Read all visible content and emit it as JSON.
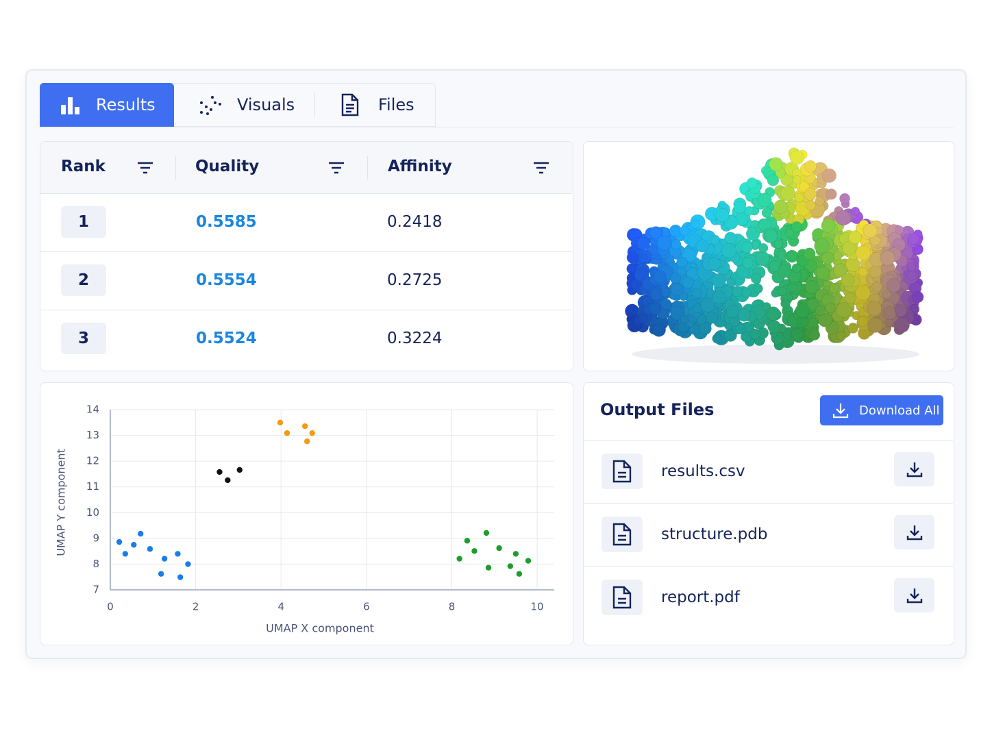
{
  "tabs": [
    {
      "label": "Results"
    },
    {
      "label": "Visuals"
    },
    {
      "label": "Files"
    }
  ],
  "table": {
    "headers": [
      "Rank",
      "Quality",
      "Affinity"
    ],
    "rows": [
      [
        1,
        0.5585,
        0.2418
      ],
      [
        2,
        0.5554,
        0.2725
      ],
      [
        3,
        0.5524,
        0.3224
      ]
    ]
  },
  "chart_data": {
    "type": "scatter",
    "x_label": "UMAP X component",
    "y_label": "UMAP Y component",
    "xlim": [
      0,
      10.4
    ],
    "ylim": [
      7,
      14
    ],
    "xticks": [
      0,
      2,
      4,
      6,
      8,
      10
    ],
    "yticks": [
      7,
      8,
      9,
      10,
      11,
      12,
      13,
      14
    ],
    "grid": true,
    "series": [
      {
        "color": "#1a7de8",
        "x": [
          0.21,
          0.35,
          0.55,
          0.71,
          0.93,
          1.19,
          1.27,
          1.58,
          1.64,
          1.82
        ],
        "y": [
          8.86,
          8.4,
          8.75,
          9.18,
          8.59,
          7.62,
          8.21,
          8.4,
          7.49,
          8.0
        ]
      },
      {
        "color": "#111111",
        "x": [
          2.56,
          2.75,
          3.03
        ],
        "y": [
          11.58,
          11.26,
          11.66
        ]
      },
      {
        "color": "#f59a12",
        "x": [
          3.98,
          4.14,
          4.56,
          4.73,
          4.61
        ],
        "y": [
          13.5,
          13.09,
          13.36,
          13.09,
          12.77
        ]
      },
      {
        "color": "#1c9e2c",
        "x": [
          8.18,
          8.36,
          8.53,
          8.81,
          8.86,
          9.11,
          9.37,
          9.5,
          9.58,
          9.79
        ],
        "y": [
          8.21,
          8.91,
          8.51,
          9.21,
          7.86,
          8.62,
          7.92,
          8.4,
          7.62,
          8.13
        ]
      }
    ]
  },
  "files": {
    "title": "Output Files",
    "download_all": "Download All",
    "items": [
      "results.csv",
      "structure.pdb",
      "report.pdf"
    ]
  }
}
